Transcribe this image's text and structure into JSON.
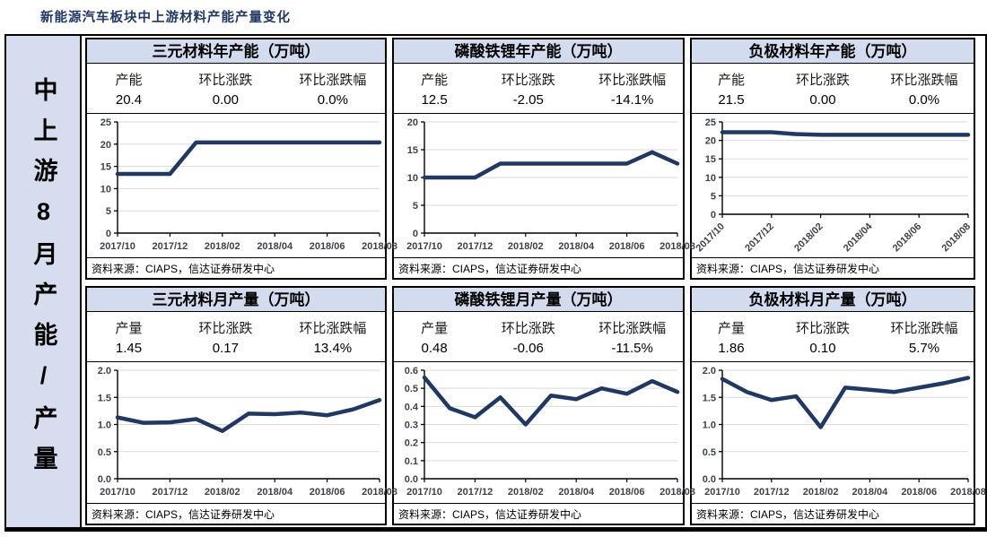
{
  "header": {
    "title": "新能源汽车板块中上游材料产能产量变化"
  },
  "sidebar": {
    "label": "中上游8月产能/产量"
  },
  "colors": {
    "accent_navy": "#1F3864",
    "panel_header_bg": "#D3DBEE",
    "sidebar_bg": "#D5DDEE",
    "gridline": "#D9D9D9",
    "line_series": "#1F3864"
  },
  "panels": [
    {
      "title": "三元材料年产能（万吨）",
      "stats": {
        "metric_label": "产能",
        "metric_value": "20.4",
        "change_label": "环比涨跌",
        "change_value": "0.00",
        "pct_label": "环比涨跌幅",
        "pct_value": "0.0%"
      },
      "source": "资料来源：CIAPS，信达证券研发中心"
    },
    {
      "title": "磷酸铁锂年产能（万吨）",
      "stats": {
        "metric_label": "产能",
        "metric_value": "12.5",
        "change_label": "环比涨跌",
        "change_value": "-2.05",
        "pct_label": "环比涨跌幅",
        "pct_value": "-14.1%"
      },
      "source": "资料来源：CIAPS，信达证券研发中心"
    },
    {
      "title": "负极材料年产能（万吨）",
      "stats": {
        "metric_label": "产能",
        "metric_value": "21.5",
        "change_label": "环比涨跌",
        "change_value": "0.00",
        "pct_label": "环比涨跌幅",
        "pct_value": "0.0%"
      },
      "source": "资料来源：CIAPS，信达证券研发中心"
    },
    {
      "title": "三元材料月产量（万吨）",
      "stats": {
        "metric_label": "产量",
        "metric_value": "1.45",
        "change_label": "环比涨跌",
        "change_value": "0.17",
        "pct_label": "环比涨跌幅",
        "pct_value": "13.4%"
      },
      "source": "资料来源：CIAPS，信达证券研发中心"
    },
    {
      "title": "磷酸铁锂月产量（万吨）",
      "stats": {
        "metric_label": "产量",
        "metric_value": "0.48",
        "change_label": "环比涨跌",
        "change_value": "-0.06",
        "pct_label": "环比涨跌幅",
        "pct_value": "-11.5%"
      },
      "source": "资料来源：CIAPS，信达证券研发中心"
    },
    {
      "title": "负极材料月产量（万吨）",
      "stats": {
        "metric_label": "产量",
        "metric_value": "1.86",
        "change_label": "环比涨跌",
        "change_value": "0.10",
        "pct_label": "环比涨跌幅",
        "pct_value": "5.7%"
      },
      "source": "资料来源：CIAPS，信达证券研发中心"
    }
  ],
  "chart_data": [
    {
      "type": "line",
      "title": "三元材料年产能（万吨）",
      "x": [
        "2017/10",
        "2017/11",
        "2017/12",
        "2018/01",
        "2018/02",
        "2018/03",
        "2018/04",
        "2018/05",
        "2018/06",
        "2018/07",
        "2018/08"
      ],
      "values": [
        13.3,
        13.3,
        13.3,
        20.4,
        20.4,
        20.4,
        20.4,
        20.4,
        20.4,
        20.4,
        20.4
      ],
      "ylim": [
        0,
        25
      ],
      "yticks": [
        "0",
        "5",
        "10",
        "15",
        "20",
        "25"
      ],
      "xticks": [
        "2017/10",
        "2017/12",
        "2018/02",
        "2018/04",
        "2018/06",
        "2018/08"
      ],
      "x_label_rotation": 0,
      "grid": true,
      "line_color": "#1F3864"
    },
    {
      "type": "line",
      "title": "磷酸铁锂年产能（万吨）",
      "x": [
        "2017/10",
        "2017/11",
        "2017/12",
        "2018/01",
        "2018/02",
        "2018/03",
        "2018/04",
        "2018/05",
        "2018/06",
        "2018/07",
        "2018/08"
      ],
      "values": [
        10,
        10,
        10,
        12.5,
        12.5,
        12.5,
        12.5,
        12.5,
        12.5,
        14.55,
        12.5
      ],
      "ylim": [
        0,
        20
      ],
      "yticks": [
        "0",
        "5",
        "10",
        "15",
        "20"
      ],
      "xticks": [
        "2017/10",
        "2017/12",
        "2018/02",
        "2018/04",
        "2018/06",
        "2018/08"
      ],
      "x_label_rotation": 0,
      "grid": true,
      "line_color": "#1F3864"
    },
    {
      "type": "line",
      "title": "负极材料年产能（万吨）",
      "x": [
        "2017/10",
        "2017/11",
        "2017/12",
        "2018/01",
        "2018/02",
        "2018/03",
        "2018/04",
        "2018/05",
        "2018/06",
        "2018/07",
        "2018/08"
      ],
      "values": [
        22.2,
        22.2,
        22.2,
        21.7,
        21.5,
        21.5,
        21.5,
        21.5,
        21.5,
        21.5,
        21.5
      ],
      "ylim": [
        0,
        25
      ],
      "yticks": [
        "0",
        "5",
        "10",
        "15",
        "20",
        "25"
      ],
      "xticks": [
        "2017/10",
        "2017/12",
        "2018/02",
        "2018/04",
        "2018/06",
        "2018/08"
      ],
      "x_label_rotation": 45,
      "grid": true,
      "line_color": "#1F3864"
    },
    {
      "type": "line",
      "title": "三元材料月产量（万吨）",
      "x": [
        "2017/10",
        "2017/11",
        "2017/12",
        "2018/01",
        "2018/02",
        "2018/03",
        "2018/04",
        "2018/05",
        "2018/06",
        "2018/07",
        "2018/08"
      ],
      "values": [
        1.13,
        1.03,
        1.04,
        1.1,
        0.88,
        1.2,
        1.19,
        1.22,
        1.17,
        1.28,
        1.45
      ],
      "ylim": [
        0,
        2.0
      ],
      "yticks": [
        "0.0",
        "0.5",
        "1.0",
        "1.5",
        "2.0"
      ],
      "xticks": [
        "2017/10",
        "2017/12",
        "2018/02",
        "2018/04",
        "2018/06",
        "2018/08"
      ],
      "x_label_rotation": 0,
      "grid": true,
      "line_color": "#1F3864"
    },
    {
      "type": "line",
      "title": "磷酸铁锂月产量（万吨）",
      "x": [
        "2017/10",
        "2017/11",
        "2017/12",
        "2018/01",
        "2018/02",
        "2018/03",
        "2018/04",
        "2018/05",
        "2018/06",
        "2018/07",
        "2018/08"
      ],
      "values": [
        0.56,
        0.39,
        0.34,
        0.45,
        0.3,
        0.46,
        0.44,
        0.5,
        0.47,
        0.54,
        0.48
      ],
      "ylim": [
        0,
        0.6
      ],
      "yticks": [
        "0.0",
        "0.1",
        "0.2",
        "0.3",
        "0.4",
        "0.5",
        "0.6"
      ],
      "xticks": [
        "2017/10",
        "2017/12",
        "2018/02",
        "2018/04",
        "2018/06",
        "2018/08"
      ],
      "x_label_rotation": 0,
      "grid": true,
      "line_color": "#1F3864"
    },
    {
      "type": "line",
      "title": "负极材料月产量（万吨）",
      "x": [
        "2017/10",
        "2017/11",
        "2017/12",
        "2018/01",
        "2018/02",
        "2018/03",
        "2018/04",
        "2018/05",
        "2018/06",
        "2018/07",
        "2018/08"
      ],
      "values": [
        1.84,
        1.6,
        1.45,
        1.52,
        0.95,
        1.68,
        1.64,
        1.6,
        1.68,
        1.76,
        1.86
      ],
      "ylim": [
        0,
        2.0
      ],
      "yticks": [
        "0.0",
        "0.5",
        "1.0",
        "1.5",
        "2.0"
      ],
      "xticks": [
        "2017/10",
        "2017/12",
        "2018/02",
        "2018/04",
        "2018/06",
        "2018/08"
      ],
      "x_label_rotation": 0,
      "grid": true,
      "line_color": "#1F3864"
    }
  ]
}
